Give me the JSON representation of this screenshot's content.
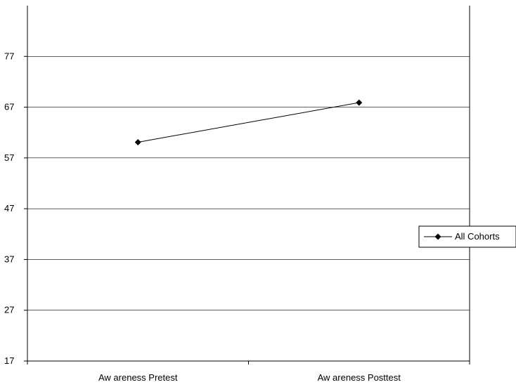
{
  "chart_data": {
    "type": "line",
    "title": "",
    "xlabel": "",
    "ylabel": "",
    "categories": [
      "Aw areness Pretest",
      "Aw areness Posttest"
    ],
    "series": [
      {
        "name": "All Cohorts",
        "values": [
          60.1,
          67.9
        ],
        "color": "#000000",
        "marker": "diamond"
      }
    ],
    "ylim": [
      17,
      87
    ],
    "yticks": [
      17,
      27,
      37,
      47,
      57,
      67,
      77
    ],
    "grid": true,
    "legend": "right"
  }
}
